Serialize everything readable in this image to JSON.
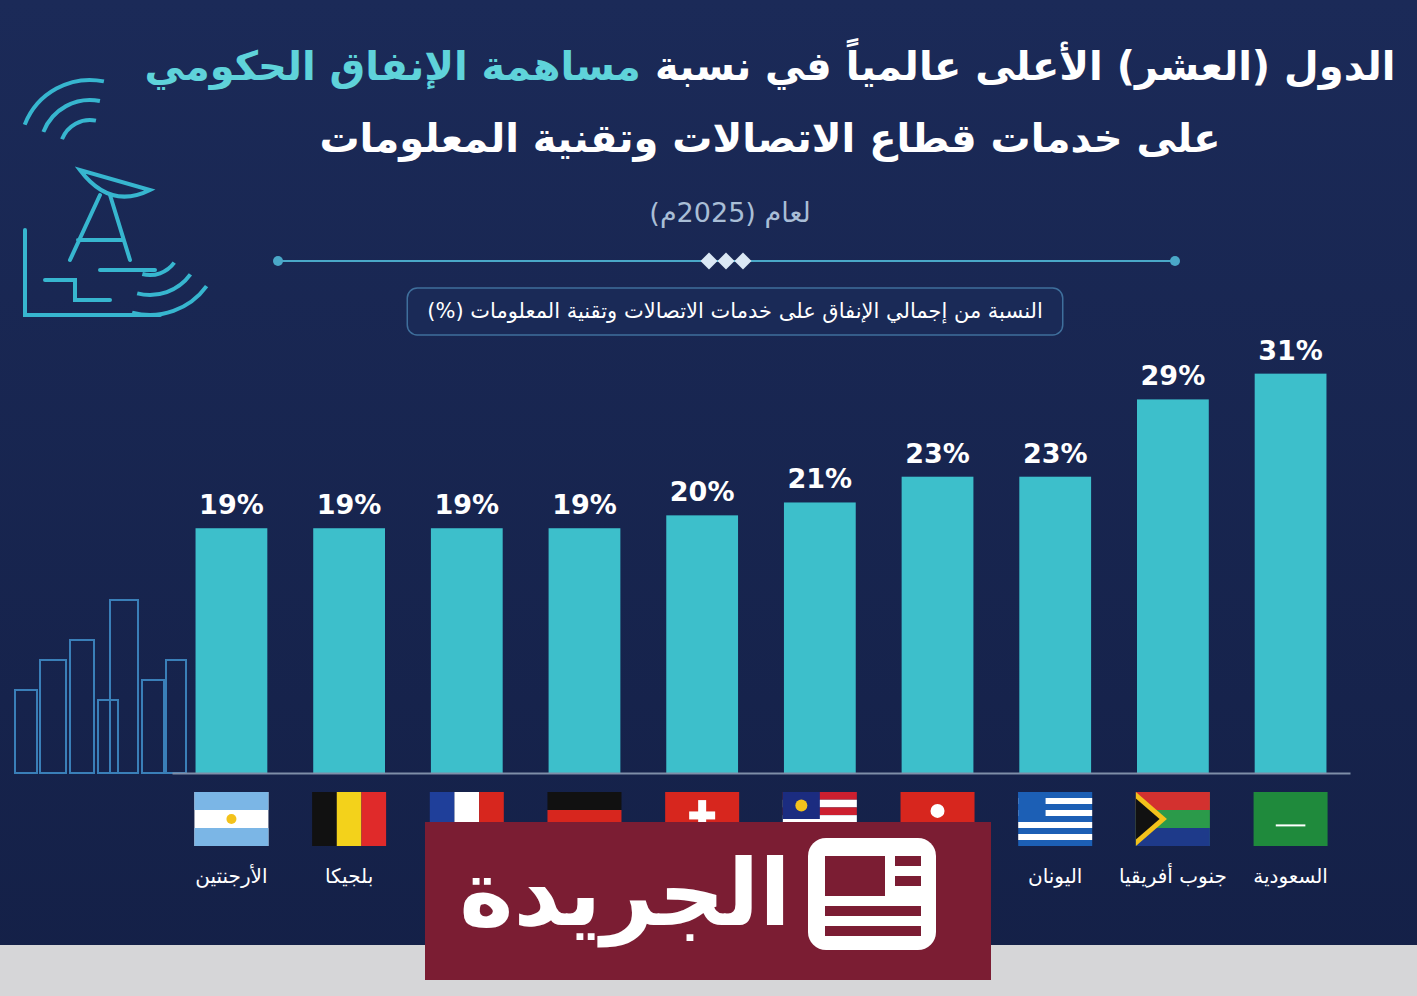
{
  "chart_data": {
    "type": "bar",
    "title": [
      "الدول (العشر) الأعلى عالمياً في نسبة",
      "مساهمة الإنفاق الحكومي",
      "على خدمات قطاع الاتصالات وتقنية المعلومات"
    ],
    "subtitle": "لعام (2025م)",
    "ylabel": "النسبة من إجمالي الإنفاق على خدمات الاتصالات وتقنية المعلومات (%)",
    "annotations": [
      "الجريدة"
    ],
    "categories": [
      "السعودية",
      "جنوب أفريقيا",
      "اليونان",
      null,
      null,
      null,
      null,
      null,
      "بلجيكا",
      "الأرجنتين"
    ],
    "values": [
      31,
      29,
      23,
      23,
      21,
      20,
      19,
      19,
      19,
      19
    ],
    "value_labels": [
      "31%",
      "29%",
      "23%",
      "23%",
      "21%",
      "20%",
      "19%",
      "19%",
      "19%",
      "19%"
    ],
    "color": "#3dbfcb",
    "ylim": [
      0,
      34
    ],
    "data_labels": true,
    "tick_labels": "x",
    "grid": false
  }
}
